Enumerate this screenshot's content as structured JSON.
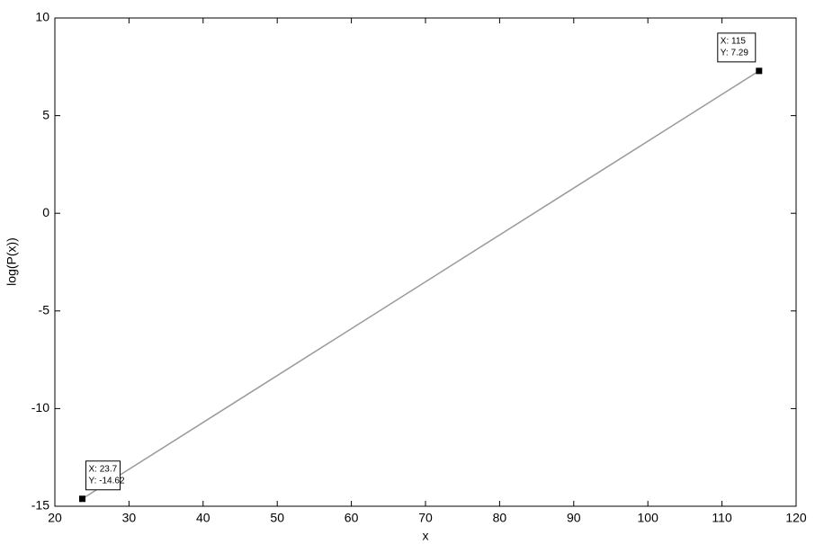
{
  "chart_data": {
    "type": "line",
    "x_label": "x",
    "y_label": "log(P(x))",
    "x": [
      23.7,
      115
    ],
    "values": [
      -14.62,
      7.29
    ],
    "x_value_labels": [
      "X: 23.7",
      "X: 115"
    ],
    "value_labels": [
      "Y: -14.62",
      "Y: 7.29"
    ],
    "color": "#9a9a9a",
    "marker_color": "#000000",
    "xlim": [
      20,
      120
    ],
    "xticks": [
      20,
      30,
      40,
      50,
      60,
      70,
      80,
      90,
      100,
      110,
      120
    ],
    "ylim": [
      -15,
      10
    ],
    "yticks": [
      -15,
      -10,
      -5,
      0,
      5,
      10
    ],
    "grid": false
  }
}
